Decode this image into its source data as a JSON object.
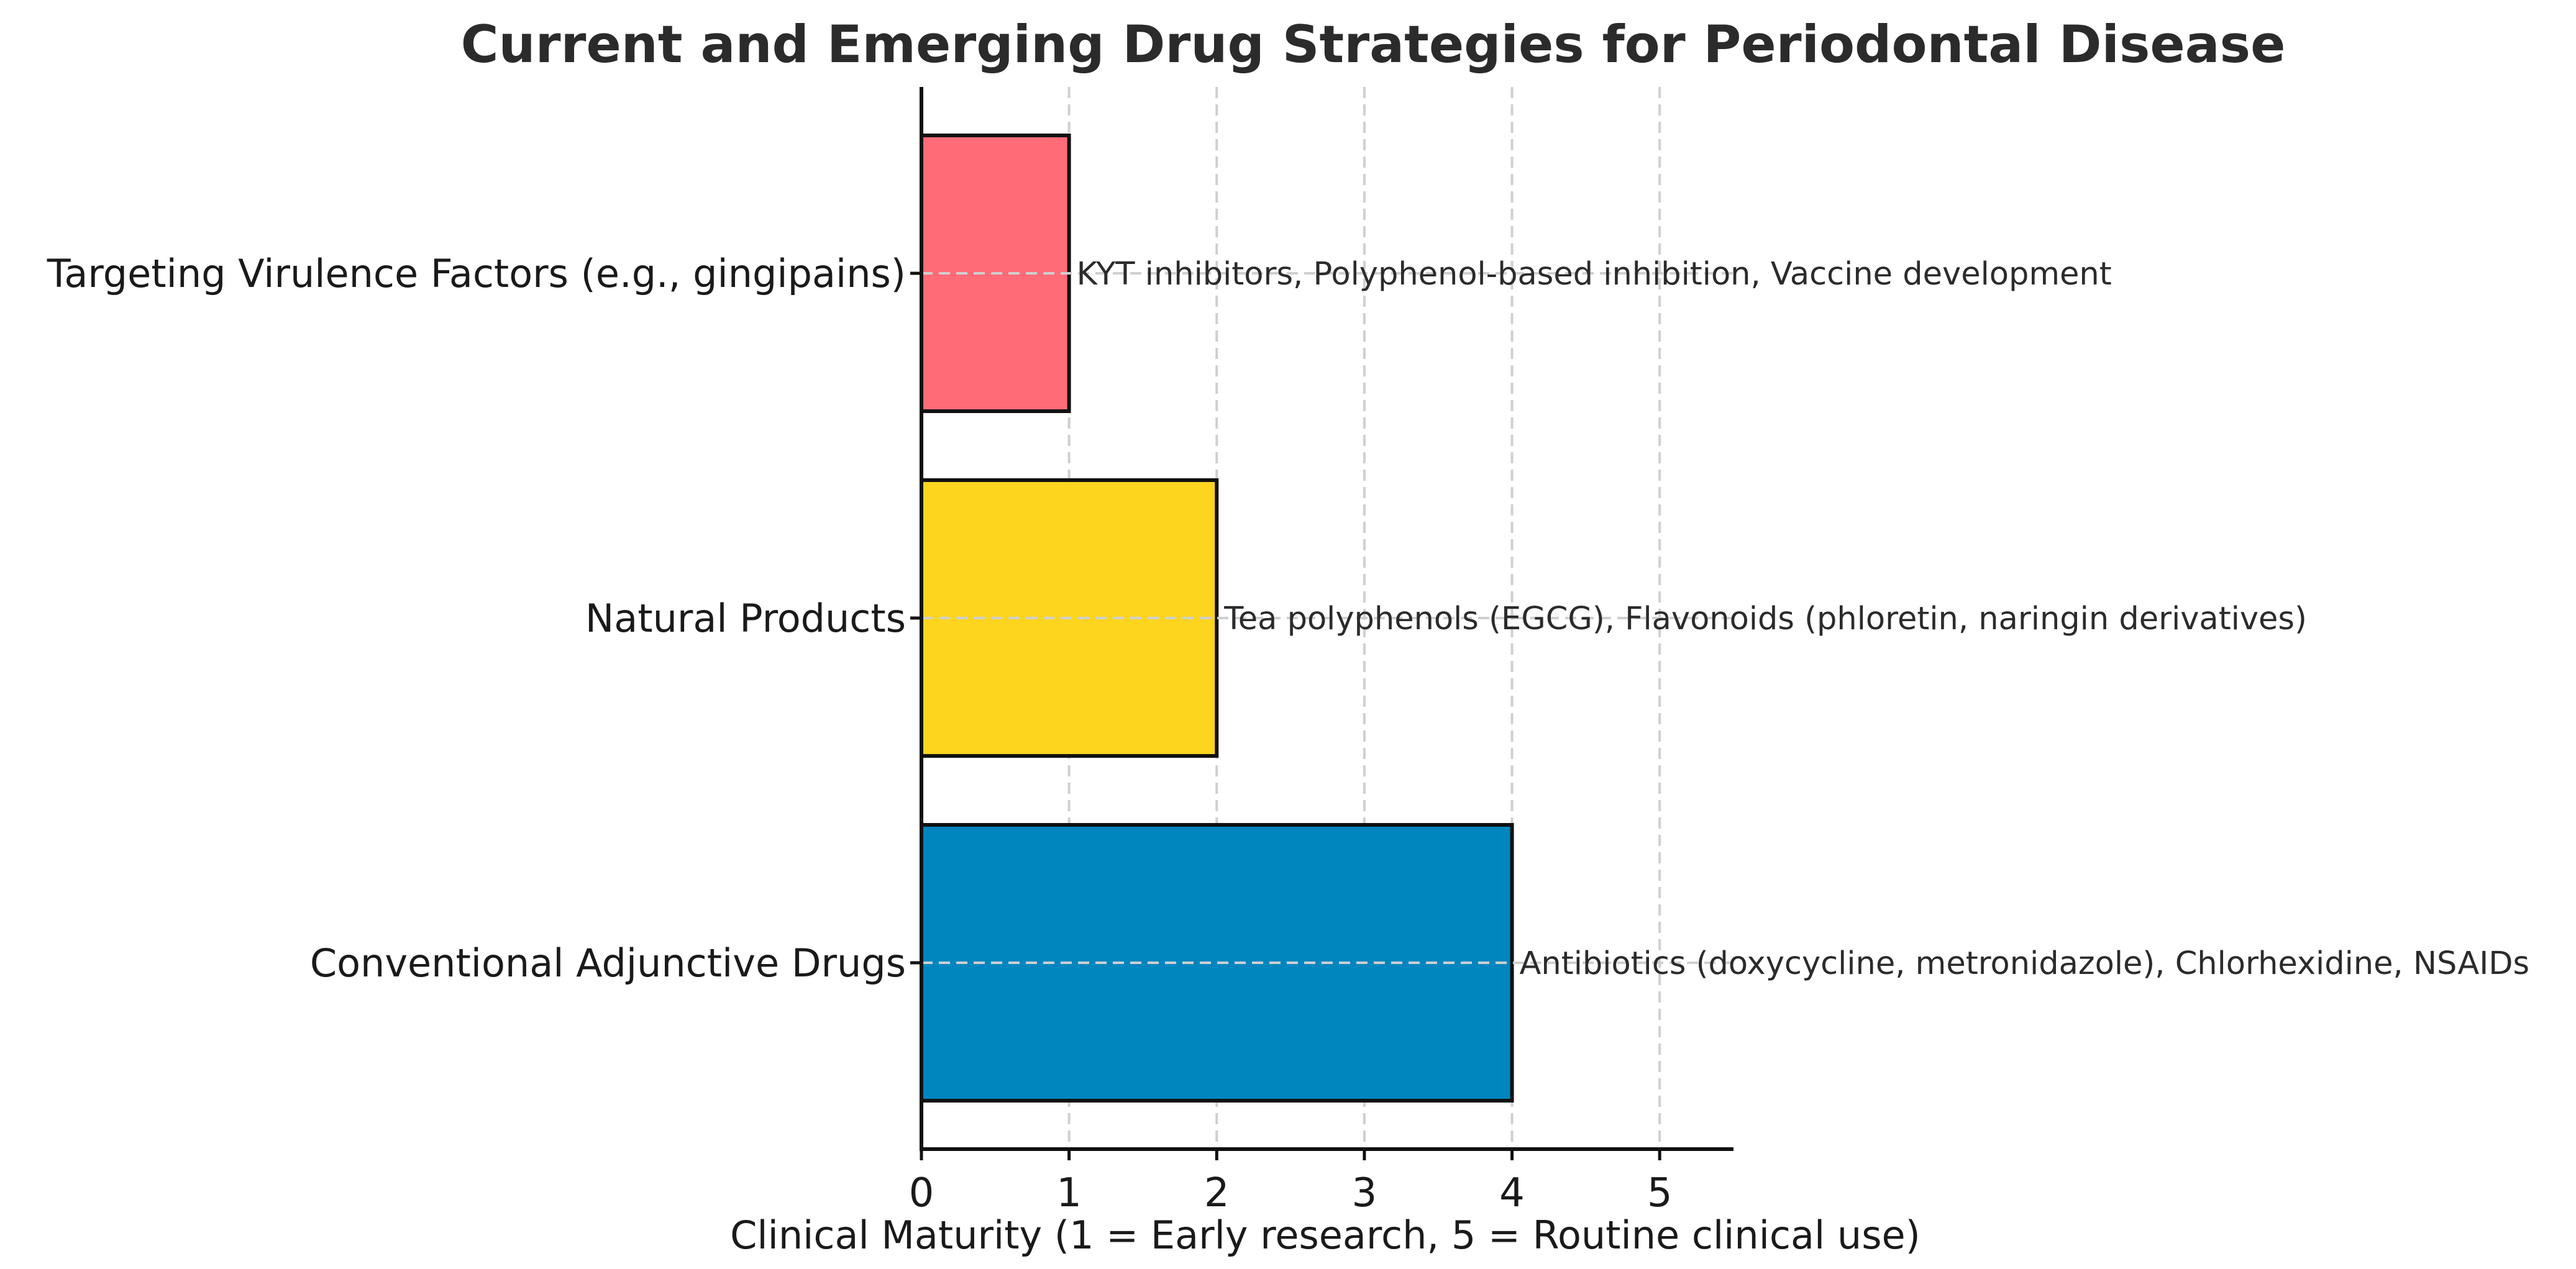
{
  "chart_data": {
    "type": "bar",
    "orientation": "horizontal",
    "title": "Current and Emerging Drug Strategies for Periodontal Disease",
    "xlabel": "Clinical Maturity (1 = Early research, 5 = Routine clinical use)",
    "ylabel": "",
    "xlim": [
      0,
      5.5
    ],
    "xticks": [
      "0",
      "1",
      "2",
      "3",
      "4",
      "5"
    ],
    "grid": true,
    "categories": [
      "Conventional Adjunctive Drugs",
      "Natural Products",
      "Targeting Virulence Factors (e.g., gingipains)"
    ],
    "values": [
      4,
      2,
      1
    ],
    "colors": [
      "#0086bf",
      "#fdd51f",
      "#ff6b77"
    ],
    "annotations": [
      "Antibiotics (doxycycline, metronidazole), Chlorhexidine, NSAIDs",
      "Tea polyphenols (EGCG), Flavonoids (phloretin, naringin derivatives)",
      "KYT inhibitors, Polyphenol-based inhibition, Vaccine development"
    ]
  }
}
